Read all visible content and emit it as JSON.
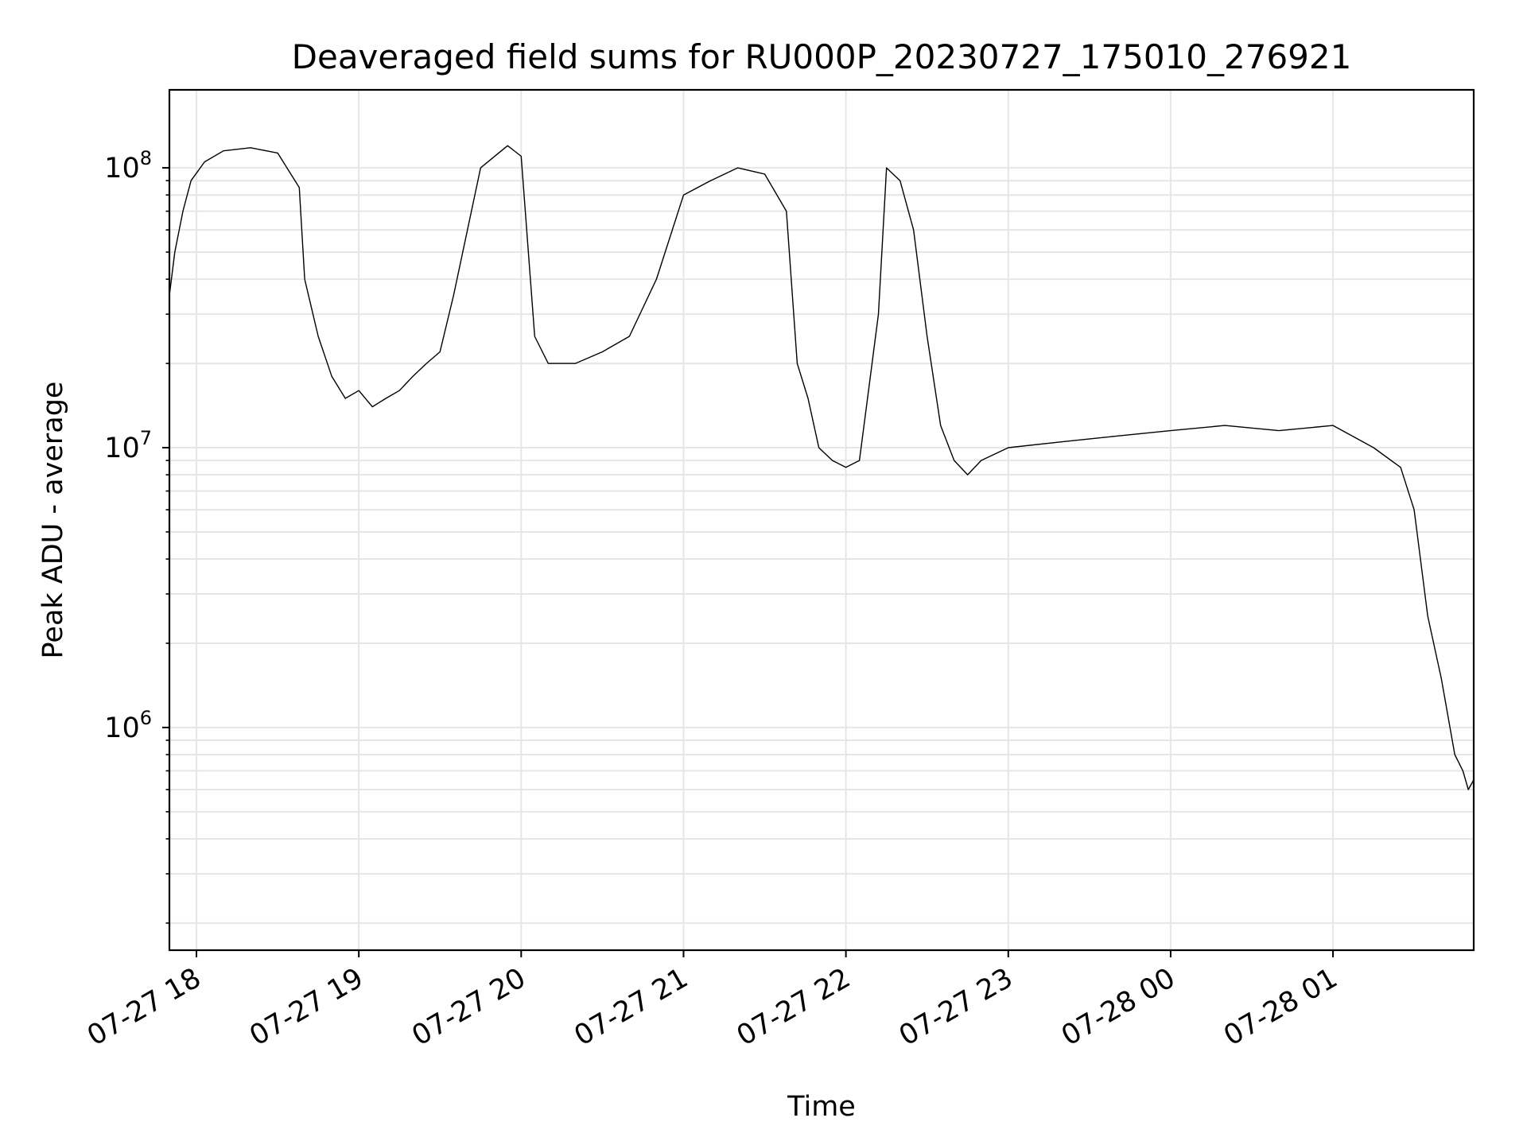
{
  "chart_data": {
    "type": "line",
    "title": "Deaveraged field sums for RU000P_20230727_175010_276921",
    "xlabel": "Time",
    "ylabel": "Peak ADU - average",
    "yscale": "log",
    "grid": true,
    "line_color": "#000000",
    "grid_color": "#e6e6e6",
    "xlim": [
      "2023-07-27 17:50",
      "2023-07-28 01:52"
    ],
    "ylim": [
      160000,
      190000000
    ],
    "x_ticks": [
      {
        "value": "2023-07-27 18:00",
        "label": "07-27 18"
      },
      {
        "value": "2023-07-27 19:00",
        "label": "07-27 19"
      },
      {
        "value": "2023-07-27 20:00",
        "label": "07-27 20"
      },
      {
        "value": "2023-07-27 21:00",
        "label": "07-27 21"
      },
      {
        "value": "2023-07-27 22:00",
        "label": "07-27 22"
      },
      {
        "value": "2023-07-27 23:00",
        "label": "07-27 23"
      },
      {
        "value": "2023-07-28 00:00",
        "label": "07-28 00"
      },
      {
        "value": "2023-07-28 01:00",
        "label": "07-28 01"
      }
    ],
    "y_ticks": [
      {
        "value": 1000000,
        "base": "10",
        "exp": "6"
      },
      {
        "value": 10000000,
        "base": "10",
        "exp": "7"
      },
      {
        "value": 100000000,
        "base": "10",
        "exp": "8"
      }
    ],
    "series": [
      {
        "x": [
          "2023-07-27 17:50",
          "2023-07-27 17:52",
          "2023-07-27 17:55",
          "2023-07-27 17:58",
          "2023-07-27 18:03",
          "2023-07-27 18:10",
          "2023-07-27 18:20",
          "2023-07-27 18:30",
          "2023-07-27 18:38",
          "2023-07-27 18:40",
          "2023-07-27 18:45",
          "2023-07-27 18:50",
          "2023-07-27 18:55",
          "2023-07-27 19:00",
          "2023-07-27 19:05",
          "2023-07-27 19:10",
          "2023-07-27 19:15",
          "2023-07-27 19:20",
          "2023-07-27 19:25",
          "2023-07-27 19:30",
          "2023-07-27 19:35",
          "2023-07-27 19:45",
          "2023-07-27 19:55",
          "2023-07-27 20:00",
          "2023-07-27 20:05",
          "2023-07-27 20:10",
          "2023-07-27 20:20",
          "2023-07-27 20:30",
          "2023-07-27 20:40",
          "2023-07-27 20:50",
          "2023-07-27 21:00",
          "2023-07-27 21:10",
          "2023-07-27 21:20",
          "2023-07-27 21:30",
          "2023-07-27 21:38",
          "2023-07-27 21:42",
          "2023-07-27 21:46",
          "2023-07-27 21:50",
          "2023-07-27 21:55",
          "2023-07-27 22:00",
          "2023-07-27 22:05",
          "2023-07-27 22:08",
          "2023-07-27 22:12",
          "2023-07-27 22:15",
          "2023-07-27 22:20",
          "2023-07-27 22:25",
          "2023-07-27 22:30",
          "2023-07-27 22:35",
          "2023-07-27 22:40",
          "2023-07-27 22:45",
          "2023-07-27 22:50",
          "2023-07-27 23:00",
          "2023-07-27 23:20",
          "2023-07-27 23:40",
          "2023-07-28 00:00",
          "2023-07-28 00:20",
          "2023-07-28 00:40",
          "2023-07-28 01:00",
          "2023-07-28 01:15",
          "2023-07-28 01:25",
          "2023-07-28 01:30",
          "2023-07-28 01:35",
          "2023-07-28 01:40",
          "2023-07-28 01:45",
          "2023-07-28 01:48",
          "2023-07-28 01:50",
          "2023-07-28 01:52"
        ],
        "y": [
          35000000,
          50000000,
          70000000,
          90000000,
          105000000,
          115000000,
          118000000,
          113000000,
          85000000,
          40000000,
          25000000,
          18000000,
          15000000,
          16000000,
          14000000,
          15000000,
          16000000,
          18000000,
          20000000,
          22000000,
          35000000,
          100000000,
          120000000,
          110000000,
          25000000,
          20000000,
          20000000,
          22000000,
          25000000,
          40000000,
          80000000,
          90000000,
          100000000,
          95000000,
          70000000,
          20000000,
          15000000,
          10000000,
          9000000,
          8500000,
          9000000,
          15000000,
          30000000,
          100000000,
          90000000,
          60000000,
          25000000,
          12000000,
          9000000,
          8000000,
          9000000,
          10000000,
          10500000,
          11000000,
          11500000,
          12000000,
          11500000,
          12000000,
          10000000,
          8500000,
          6000000,
          2500000,
          1500000,
          800000,
          700000,
          600000,
          650000
        ]
      }
    ]
  }
}
